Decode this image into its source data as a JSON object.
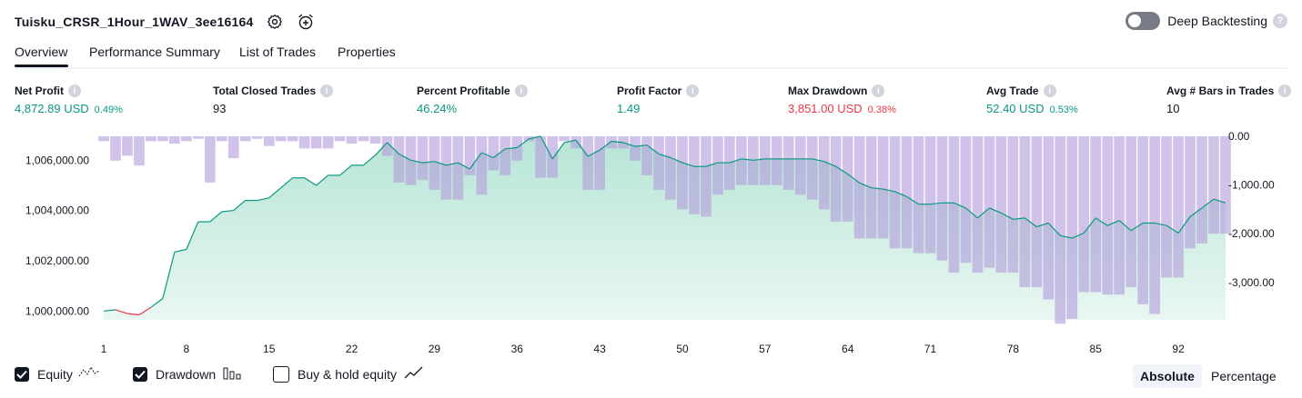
{
  "header": {
    "strategy_name": "Tuisku_CRSR_1Hour_1WAV_3ee16164",
    "deep_backtesting_label": "Deep Backtesting",
    "icons": [
      "settings-icon",
      "add-alert-icon"
    ]
  },
  "tabs": [
    {
      "label": "Overview",
      "active": true
    },
    {
      "label": "Performance Summary",
      "active": false
    },
    {
      "label": "List of Trades",
      "active": false
    },
    {
      "label": "Properties",
      "active": false
    }
  ],
  "metrics": [
    {
      "label": "Net Profit",
      "value": "4,872.89 USD",
      "pct": "0.49%",
      "color": "#089981"
    },
    {
      "label": "Total Closed Trades",
      "value": "93",
      "pct": "",
      "color": "#131722"
    },
    {
      "label": "Percent Profitable",
      "value": "46.24%",
      "pct": "",
      "color": "#089981"
    },
    {
      "label": "Profit Factor",
      "value": "1.49",
      "pct": "",
      "color": "#089981"
    },
    {
      "label": "Max Drawdown",
      "value": "3,851.00 USD",
      "pct": "0.38%",
      "color": "#f23645"
    },
    {
      "label": "Avg Trade",
      "value": "52.40 USD",
      "pct": "0.53%",
      "color": "#089981"
    },
    {
      "label": "Avg # Bars in Trades",
      "value": "10",
      "pct": "",
      "color": "#131722"
    }
  ],
  "chart_data": {
    "type": "line",
    "left_axis_ticks": [
      "1,006,000.00",
      "1,004,000.00",
      "1,002,000.00",
      "1,000,000.00"
    ],
    "left_axis_values": [
      1006000,
      1004000,
      1002000,
      1000000
    ],
    "right_axis_ticks": [
      "0.00",
      "-1,000.00",
      "-2,000.00",
      "-3,000.00"
    ],
    "right_axis_values": [
      0,
      -1000,
      -2000,
      -3000
    ],
    "x_ticks": [
      "1",
      "8",
      "15",
      "22",
      "29",
      "36",
      "43",
      "50",
      "57",
      "64",
      "71",
      "78",
      "85",
      "92"
    ],
    "left_ylim": [
      999650,
      1006950
    ],
    "right_ylim": [
      -3900,
      0
    ],
    "xlim": [
      1,
      95
    ],
    "series": [
      {
        "name": "Equity",
        "color": "#089981",
        "values": [
          1000000,
          1000050,
          999900,
          999850,
          1000150,
          1000500,
          1002350,
          1002450,
          1003550,
          1003550,
          1003950,
          1004000,
          1004400,
          1004400,
          1004500,
          1004900,
          1005300,
          1005300,
          1005000,
          1005400,
          1005400,
          1005800,
          1005800,
          1006200,
          1006700,
          1006250,
          1006000,
          1005900,
          1005950,
          1005800,
          1005900,
          1005650,
          1006300,
          1006100,
          1006450,
          1006500,
          1006850,
          1006950,
          1006050,
          1006700,
          1006800,
          1006150,
          1006400,
          1006750,
          1006700,
          1006550,
          1006600,
          1006250,
          1006100,
          1005900,
          1005750,
          1005750,
          1005900,
          1005900,
          1006050,
          1006000,
          1006050,
          1006050,
          1006050,
          1006050,
          1006050,
          1005950,
          1005750,
          1005450,
          1005100,
          1004900,
          1004850,
          1004750,
          1004550,
          1004250,
          1004250,
          1004300,
          1004300,
          1004100,
          1003700,
          1004100,
          1003900,
          1003650,
          1003700,
          1003350,
          1003500,
          1003000,
          1002900,
          1003100,
          1003700,
          1003400,
          1003600,
          1003200,
          1003500,
          1003500,
          1003400,
          1003100,
          1003750,
          1004100,
          1004450,
          1004300
        ]
      },
      {
        "name": "Drawdown",
        "color": "#b39ddb",
        "values": [
          -100,
          -500,
          -400,
          -600,
          -100,
          -100,
          -150,
          -100,
          -50,
          -950,
          -100,
          -450,
          -100,
          -50,
          -200,
          -100,
          -100,
          -250,
          -250,
          -250,
          -100,
          -150,
          -100,
          -150,
          -400,
          -950,
          -1000,
          -900,
          -1100,
          -1300,
          -1300,
          -800,
          -1200,
          -700,
          -800,
          -500,
          -100,
          -850,
          -850,
          -100,
          -250,
          -1100,
          -1100,
          -250,
          -250,
          -500,
          -800,
          -1100,
          -1300,
          -1500,
          -1600,
          -1650,
          -1200,
          -1100,
          -1000,
          -1000,
          -1000,
          -1000,
          -1100,
          -1200,
          -1300,
          -1500,
          -1750,
          -1750,
          -2100,
          -2100,
          -2100,
          -2300,
          -2300,
          -2400,
          -2400,
          -2550,
          -2800,
          -2600,
          -2800,
          -2700,
          -2800,
          -2800,
          -3100,
          -3100,
          -3350,
          -3850,
          -3750,
          -3200,
          -3200,
          -3250,
          -3250,
          -3100,
          -3450,
          -3650,
          -2900,
          -2900,
          -2300,
          -2200,
          -2000,
          -2000
        ]
      }
    ],
    "legend": [
      {
        "label": "Equity",
        "checked": true,
        "icon": "equity-line-icon"
      },
      {
        "label": "Drawdown",
        "checked": true,
        "icon": "drawdown-bars-icon"
      },
      {
        "label": "Buy & hold equity",
        "checked": false,
        "icon": "buyhold-line-icon"
      }
    ],
    "grid": false
  },
  "mode_buttons": [
    {
      "label": "Absolute",
      "active": true
    },
    {
      "label": "Percentage",
      "active": false
    }
  ]
}
